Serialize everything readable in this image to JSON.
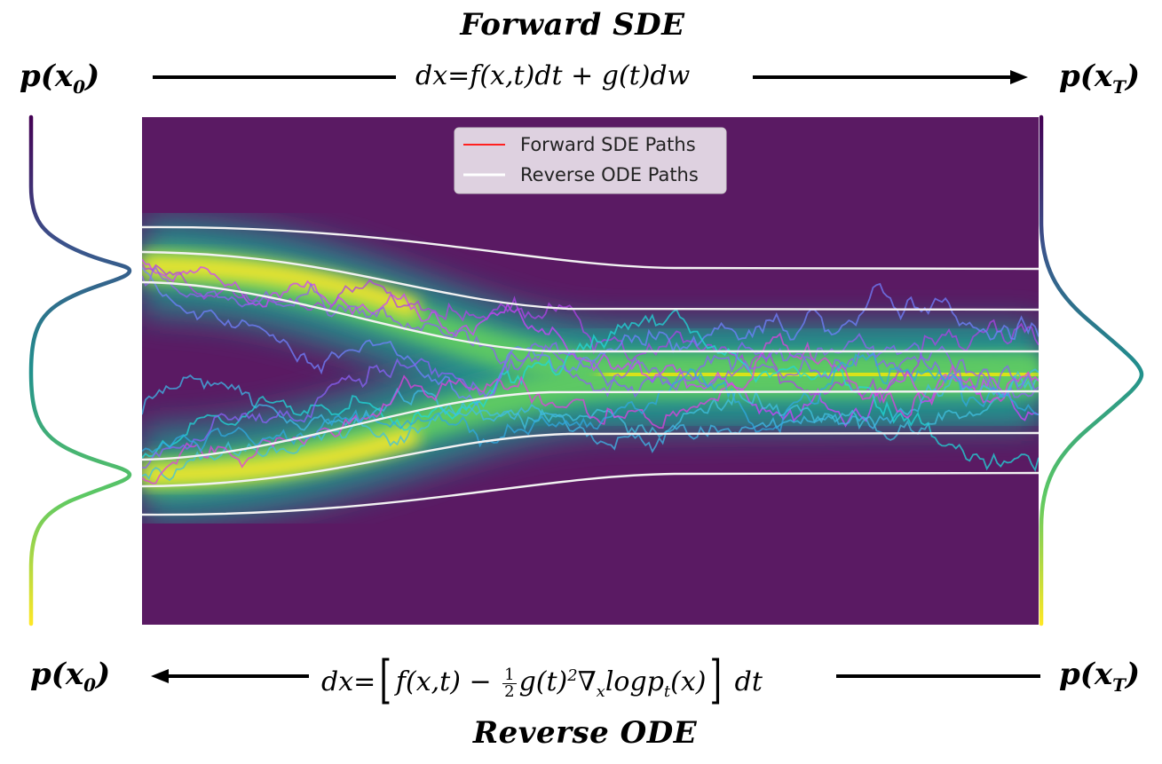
{
  "header": {
    "title": "Forward SDE",
    "left_label_base": "p(",
    "left_label_var": "x",
    "left_label_sub": "0",
    "left_label_close": ")",
    "right_label_base": "p(",
    "right_label_var": "x",
    "right_label_sub": "T",
    "right_label_close": ")",
    "equation": "dx=f(x,t)dt + g(t)dw"
  },
  "footer": {
    "title": "Reverse ODE",
    "left_label_base": "p(",
    "left_label_var": "x",
    "left_label_sub": "0",
    "left_label_close": ")",
    "right_label_base": "p(",
    "right_label_var": "x",
    "right_label_sub": "T",
    "right_label_close": ")",
    "eq_prefix": "dx=",
    "eq_part1": "f(x,t) − ",
    "eq_frac_num": "1",
    "eq_frac_den": "2",
    "eq_part2": "g(t)",
    "eq_sup": "2",
    "eq_part3": "∇",
    "eq_sub_x": "x",
    "eq_part4": "logp",
    "eq_sub_t": "t",
    "eq_part5": "(x)",
    "eq_suffix": "dt"
  },
  "legend": {
    "forward_label": "Forward SDE Paths",
    "reverse_label": "Reverse ODE Paths",
    "forward_color": "#ff2020",
    "reverse_color": "#ffffff"
  },
  "colors": {
    "background_dark": "#5a1a63",
    "density_mid": "#21908d",
    "density_high": "#fde725",
    "arrow": "#000000"
  }
}
